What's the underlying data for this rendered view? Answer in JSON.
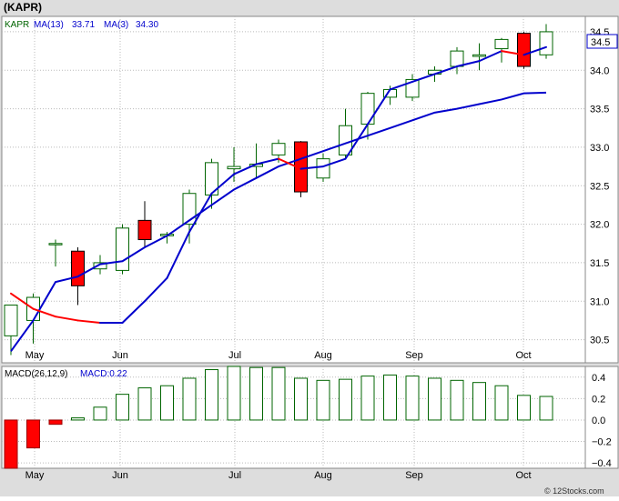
{
  "title": "(KAPR)",
  "legend": {
    "symbol": "KAPR",
    "ma13_label": "MA(13)",
    "ma13_value": "33.71",
    "ma3_label": "MA(3)",
    "ma3_value": "34.30"
  },
  "last_price_label": "34.5",
  "macd_legend": {
    "params": "MACD(26,12,9)",
    "value_label": "MACD:0.22"
  },
  "footer": "© 12Stocks.com",
  "colors": {
    "up_candle": "#ffffff",
    "down_candle": "#ff0000",
    "candle_stroke": "#006400",
    "ma13": "#0000cc",
    "ma3_up": "#0000cc",
    "ma3_down": "#ff0000",
    "panel_bg": "#ffffff",
    "outer_bg": "#dddddd",
    "axis_box": "#0000cc",
    "grid": "#bbbbbb"
  },
  "chart_data": [
    {
      "type": "candlestick",
      "name": "price",
      "x_labels": [
        "May",
        "Jun",
        "Jul",
        "Aug",
        "Sep",
        "Oct"
      ],
      "y_ticks": [
        30.5,
        31.0,
        31.5,
        32.0,
        32.5,
        33.0,
        33.5,
        34.0,
        34.5
      ],
      "ylim": [
        30.2,
        34.7
      ],
      "grid": true,
      "candles": [
        {
          "o": 30.55,
          "h": 30.95,
          "l": 30.3,
          "c": 30.95
        },
        {
          "o": 30.75,
          "h": 31.1,
          "l": 30.45,
          "c": 31.05
        },
        {
          "o": 31.75,
          "h": 31.8,
          "l": 31.45,
          "c": 31.75
        },
        {
          "o": 31.65,
          "h": 31.7,
          "l": 30.95,
          "c": 31.2
        },
        {
          "o": 31.42,
          "h": 31.6,
          "l": 31.35,
          "c": 31.5
        },
        {
          "o": 31.4,
          "h": 32.0,
          "l": 31.35,
          "c": 31.95
        },
        {
          "o": 32.05,
          "h": 32.3,
          "l": 31.7,
          "c": 31.8
        },
        {
          "o": 31.85,
          "h": 31.9,
          "l": 31.75,
          "c": 31.87
        },
        {
          "o": 32.0,
          "h": 32.45,
          "l": 31.75,
          "c": 32.4
        },
        {
          "o": 32.38,
          "h": 32.85,
          "l": 32.2,
          "c": 32.8
        },
        {
          "o": 32.72,
          "h": 33.0,
          "l": 32.55,
          "c": 32.75
        },
        {
          "o": 32.75,
          "h": 33.05,
          "l": 32.6,
          "c": 32.78
        },
        {
          "o": 32.9,
          "h": 33.1,
          "l": 32.8,
          "c": 33.05
        },
        {
          "o": 33.07,
          "h": 33.08,
          "l": 32.35,
          "c": 32.42
        },
        {
          "o": 32.6,
          "h": 32.92,
          "l": 32.55,
          "c": 32.85
        },
        {
          "o": 32.9,
          "h": 33.5,
          "l": 32.85,
          "c": 33.28
        },
        {
          "o": 33.3,
          "h": 33.72,
          "l": 33.1,
          "c": 33.7
        },
        {
          "o": 33.65,
          "h": 33.8,
          "l": 33.55,
          "c": 33.75
        },
        {
          "o": 33.65,
          "h": 33.95,
          "l": 33.6,
          "c": 33.88
        },
        {
          "o": 33.95,
          "h": 34.05,
          "l": 33.85,
          "c": 34.0
        },
        {
          "o": 34.05,
          "h": 34.3,
          "l": 33.95,
          "c": 34.25
        },
        {
          "o": 34.18,
          "h": 34.35,
          "l": 34.0,
          "c": 34.2
        },
        {
          "o": 34.28,
          "h": 34.42,
          "l": 34.1,
          "c": 34.4
        },
        {
          "o": 34.48,
          "h": 34.5,
          "l": 34.02,
          "c": 34.05
        },
        {
          "o": 34.2,
          "h": 34.6,
          "l": 34.15,
          "c": 34.5
        }
      ],
      "ma13": [
        30.35,
        30.75,
        31.25,
        31.32,
        31.48,
        31.52,
        31.7,
        31.85,
        32.05,
        32.25,
        32.45,
        32.6,
        32.75,
        32.85,
        32.95,
        33.05,
        33.15,
        33.25,
        33.35,
        33.45,
        33.5,
        33.56,
        33.62,
        33.7,
        33.71
      ],
      "ma3": [
        31.1,
        30.9,
        30.8,
        30.75,
        30.72,
        30.72,
        31.0,
        31.3,
        31.9,
        32.4,
        32.65,
        32.78,
        32.85,
        32.72,
        32.75,
        32.85,
        33.3,
        33.75,
        33.85,
        33.95,
        34.05,
        34.12,
        34.25,
        34.2,
        34.3
      ]
    },
    {
      "type": "bar",
      "name": "MACD",
      "x_labels": [
        "May",
        "Jun",
        "Jul",
        "Aug",
        "Sep",
        "Oct"
      ],
      "y_ticks": [
        -0.4,
        -0.2,
        0.0,
        0.2,
        0.4
      ],
      "ylim": [
        -0.45,
        0.5
      ],
      "values": [
        -0.45,
        -0.26,
        -0.04,
        0.02,
        0.12,
        0.24,
        0.3,
        0.32,
        0.39,
        0.47,
        0.5,
        0.49,
        0.49,
        0.39,
        0.37,
        0.38,
        0.41,
        0.42,
        0.41,
        0.39,
        0.37,
        0.35,
        0.32,
        0.23,
        0.22
      ]
    }
  ]
}
